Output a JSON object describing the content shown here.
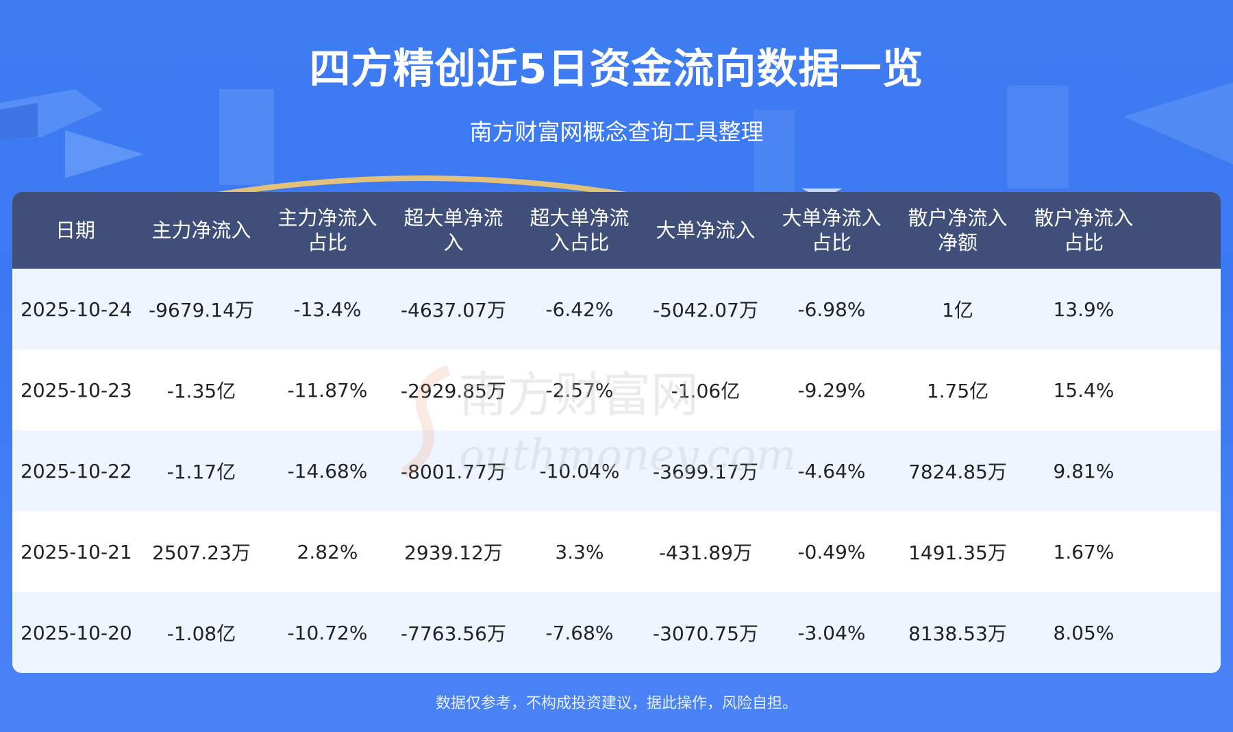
{
  "header": {
    "title": "四方精创近5日资金流向数据一览",
    "subtitle": "南方财富网概念查询工具整理"
  },
  "table": {
    "columns": [
      "日期",
      "主力净流入",
      "主力净流入\n占比",
      "超大单净流\n入",
      "超大单净流\n入占比",
      "大单净流入",
      "大单净流入\n占比",
      "散户净流入\n净额",
      "散户净流入\n占比"
    ],
    "rows": [
      [
        "2025-10-24",
        "-9679.14万",
        "-13.4%",
        "-4637.07万",
        "-6.42%",
        "-5042.07万",
        "-6.98%",
        "1亿",
        "13.9%"
      ],
      [
        "2025-10-23",
        "-1.35亿",
        "-11.87%",
        "-2929.85万",
        "-2.57%",
        "-1.06亿",
        "-9.29%",
        "1.75亿",
        "15.4%"
      ],
      [
        "2025-10-22",
        "-1.17亿",
        "-14.68%",
        "-8001.77万",
        "-10.04%",
        "-3699.17万",
        "-4.64%",
        "7824.85万",
        "9.81%"
      ],
      [
        "2025-10-21",
        "2507.23万",
        "2.82%",
        "2939.12万",
        "3.3%",
        "-431.89万",
        "-0.49%",
        "1491.35万",
        "1.67%"
      ],
      [
        "2025-10-20",
        "-1.08亿",
        "-10.72%",
        "-7763.56万",
        "-7.68%",
        "-3070.75万",
        "-3.04%",
        "8138.53万",
        "8.05%"
      ]
    ]
  },
  "watermark": {
    "cn": "南方财富网",
    "en": "outhmoney.com"
  },
  "footer": {
    "disclaimer": "数据仅参考，不构成投资建议，据此操作，风险自担。"
  },
  "colors": {
    "background": "#3f7cf2",
    "header_row": "#3f4f7a",
    "row_alt": "#eef5ff"
  }
}
